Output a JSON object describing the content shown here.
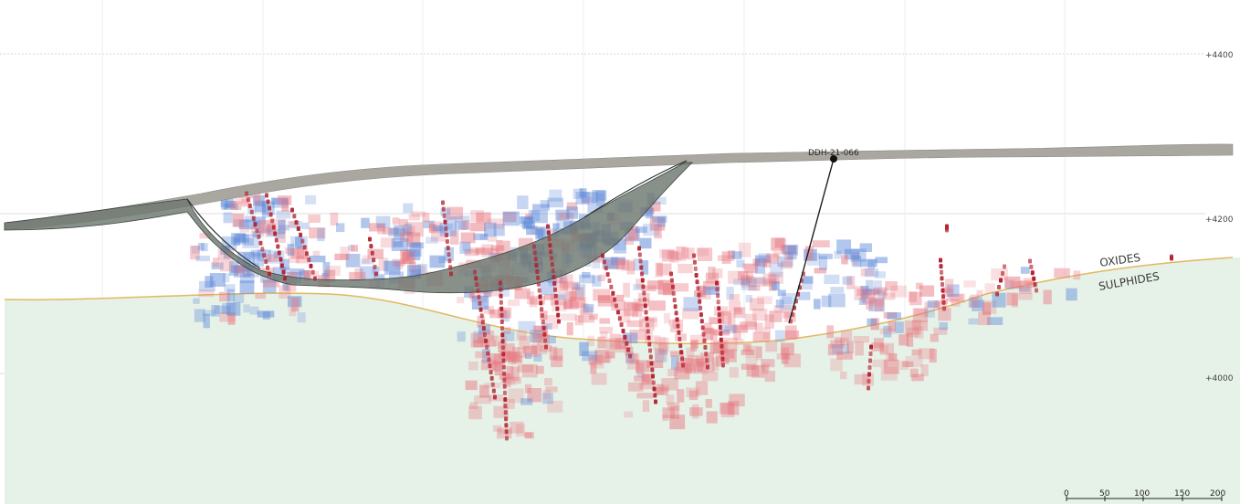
{
  "elevation_labels": [
    "+4400",
    "+4200",
    "+4000"
  ],
  "zones": {
    "oxides": "OXIDES",
    "sulphides": "SULPHIDES"
  },
  "drillhole": {
    "name": "DDH-21-066"
  },
  "scale_bar": {
    "ticks": [
      "0",
      "50",
      "100",
      "150",
      "200"
    ]
  },
  "colors": {
    "sulphide_fill": "#e6f1e8",
    "redox_line": "#e2b860",
    "topography": "#a9a7a0",
    "pit_shell": "#6e7770",
    "grade_high": "#e77a82",
    "grade_low": "#5b87d8",
    "assay_marker": "#b3202e"
  }
}
